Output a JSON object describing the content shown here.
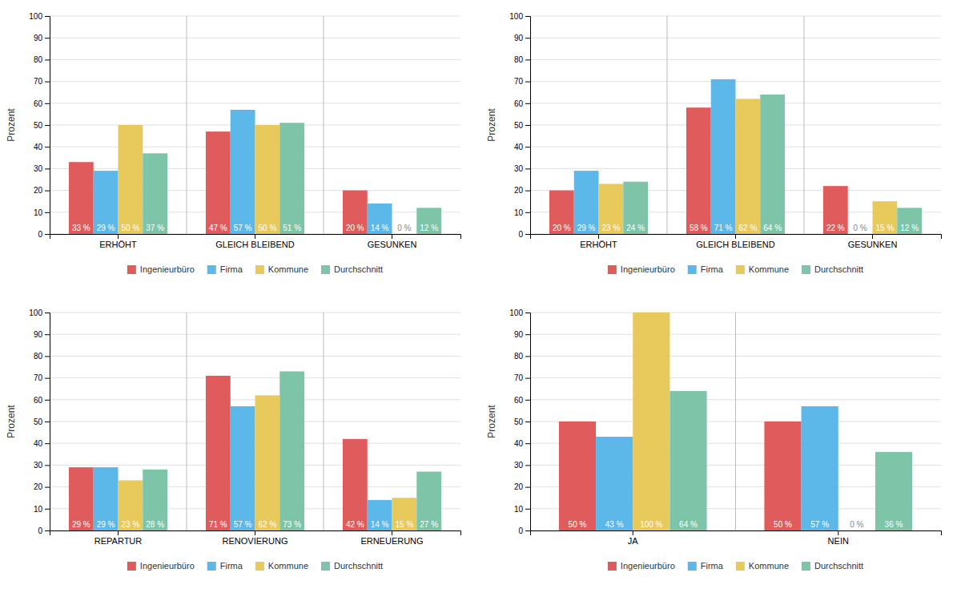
{
  "chart_data": [
    {
      "type": "bar",
      "y_label": "Prozent",
      "categories": [
        "ERHÖHT",
        "GLEICH BLEIBEND",
        "GESUNKEN"
      ],
      "series": [
        {
          "name": "Ingenieurbüro",
          "color": "#E05C5C",
          "values": [
            33,
            47,
            20
          ],
          "value_labels": [
            "33 %",
            "47 %",
            "20 %"
          ]
        },
        {
          "name": "Firma",
          "color": "#5BB8E8",
          "values": [
            29,
            57,
            14
          ],
          "value_labels": [
            "29 %",
            "57 %",
            "14 %"
          ]
        },
        {
          "name": "Kommune",
          "color": "#E8C95C",
          "values": [
            50,
            50,
            0
          ],
          "value_labels": [
            "50 %",
            "50 %",
            "0 %"
          ]
        },
        {
          "name": "Durchschnitt",
          "color": "#7DC4A8",
          "values": [
            37,
            51,
            12
          ],
          "value_labels": [
            "37 %",
            "51 %",
            "12 %"
          ]
        }
      ],
      "ylim": [
        0,
        100
      ],
      "yticks": [
        0,
        10,
        20,
        30,
        40,
        50,
        60,
        70,
        80,
        90,
        100
      ],
      "grid": true,
      "legend": "bottom",
      "data_labels": true
    },
    {
      "type": "bar",
      "y_label": "Prozent",
      "categories": [
        "ERHÖHT",
        "GLEICH BLEIBEND",
        "GESUNKEN"
      ],
      "series": [
        {
          "name": "Ingenieurbüro",
          "color": "#E05C5C",
          "values": [
            20,
            58,
            22
          ],
          "value_labels": [
            "20 %",
            "58 %",
            "22 %"
          ]
        },
        {
          "name": "Firma",
          "color": "#5BB8E8",
          "values": [
            29,
            71,
            0
          ],
          "value_labels": [
            "29 %",
            "71 %",
            "0 %"
          ]
        },
        {
          "name": "Kommune",
          "color": "#E8C95C",
          "values": [
            23,
            62,
            15
          ],
          "value_labels": [
            "23 %",
            "62 %",
            "15 %"
          ]
        },
        {
          "name": "Durchschnitt",
          "color": "#7DC4A8",
          "values": [
            24,
            64,
            12
          ],
          "value_labels": [
            "24 %",
            "64 %",
            "12 %"
          ]
        }
      ],
      "ylim": [
        0,
        100
      ],
      "yticks": [
        0,
        10,
        20,
        30,
        40,
        50,
        60,
        70,
        80,
        90,
        100
      ],
      "grid": true,
      "legend": "bottom",
      "data_labels": true
    },
    {
      "type": "bar",
      "y_label": "Prozent",
      "categories": [
        "REPARTUR",
        "RENOVIERUNG",
        "ERNEUERUNG"
      ],
      "series": [
        {
          "name": "Ingenieurbüro",
          "color": "#E05C5C",
          "values": [
            29,
            71,
            42
          ],
          "value_labels": [
            "29 %",
            "71 %",
            "42 %"
          ]
        },
        {
          "name": "Firma",
          "color": "#5BB8E8",
          "values": [
            29,
            57,
            14
          ],
          "value_labels": [
            "29 %",
            "57 %",
            "14 %"
          ]
        },
        {
          "name": "Kommune",
          "color": "#E8C95C",
          "values": [
            23,
            62,
            15
          ],
          "value_labels": [
            "23 %",
            "62 %",
            "15 %"
          ]
        },
        {
          "name": "Durchschnitt",
          "color": "#7DC4A8",
          "values": [
            28,
            73,
            27
          ],
          "value_labels": [
            "28 %",
            "73 %",
            "27 %"
          ]
        }
      ],
      "ylim": [
        0,
        100
      ],
      "yticks": [
        0,
        10,
        20,
        30,
        40,
        50,
        60,
        70,
        80,
        90,
        100
      ],
      "grid": true,
      "legend": "bottom",
      "data_labels": true
    },
    {
      "type": "bar",
      "y_label": "Prozent",
      "categories": [
        "JA",
        "NEIN"
      ],
      "series": [
        {
          "name": "Ingenieurbüro",
          "color": "#E05C5C",
          "values": [
            50,
            50
          ],
          "value_labels": [
            "50 %",
            "50 %"
          ]
        },
        {
          "name": "Firma",
          "color": "#5BB8E8",
          "values": [
            43,
            57
          ],
          "value_labels": [
            "43 %",
            "57 %"
          ]
        },
        {
          "name": "Kommune",
          "color": "#E8C95C",
          "values": [
            100,
            0
          ],
          "value_labels": [
            "100 %",
            "0 %"
          ]
        },
        {
          "name": "Durchschnitt",
          "color": "#7DC4A8",
          "values": [
            64,
            36
          ],
          "value_labels": [
            "64 %",
            "36 %"
          ]
        }
      ],
      "ylim": [
        0,
        100
      ],
      "yticks": [
        0,
        10,
        20,
        30,
        40,
        50,
        60,
        70,
        80,
        90,
        100
      ],
      "grid": true,
      "legend": "bottom",
      "data_labels": true
    }
  ]
}
